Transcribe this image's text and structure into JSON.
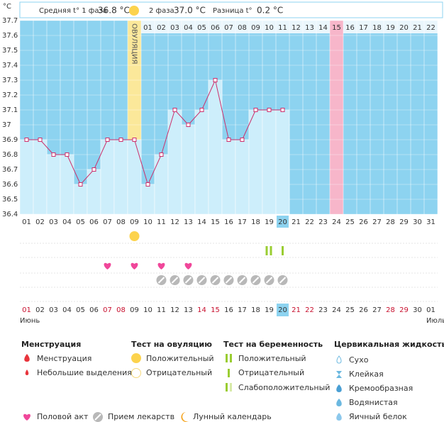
{
  "chart_data": {
    "type": "line",
    "unit": "°C",
    "header": {
      "phase1_label": "Средняя t° 1 фаза",
      "phase1_value": "36.8 °C",
      "phase2_label": "2 фаза",
      "phase2_value": "37.0 °C",
      "diff_label": "Разница t°",
      "diff_value": "0.2 °C"
    },
    "ovulation_label": "ОВУЛЯЦИЯ",
    "ovulation_day": "09",
    "highlight_day": "24",
    "today": "20",
    "categories": [
      "01",
      "02",
      "03",
      "04",
      "05",
      "06",
      "07",
      "08",
      "09",
      "10",
      "11",
      "12",
      "13",
      "14",
      "15",
      "16",
      "17",
      "18",
      "19",
      "20",
      "21",
      "22",
      "23",
      "24",
      "25",
      "26",
      "27",
      "28",
      "29",
      "30",
      "31"
    ],
    "values": [
      36.9,
      36.9,
      36.8,
      36.8,
      36.6,
      36.7,
      36.9,
      36.9,
      36.9,
      36.6,
      36.8,
      37.1,
      37.0,
      37.1,
      37.3,
      36.9,
      36.9,
      37.1,
      37.1,
      37.1,
      null,
      null,
      null,
      null,
      null,
      null,
      null,
      null,
      null,
      null,
      null
    ],
    "cycle_days": [
      "01",
      "02",
      "03",
      "04",
      "05",
      "06",
      "07",
      "08",
      "09",
      "10",
      "11",
      "12",
      "13",
      "14",
      "15",
      "16",
      "17",
      "18",
      "19",
      "20",
      "21",
      "22"
    ],
    "ylim": [
      36.4,
      37.7
    ],
    "yticks": [
      36.4,
      36.5,
      36.6,
      36.7,
      36.8,
      36.9,
      37,
      37.1,
      37.2,
      37.3,
      37.4,
      37.5,
      37.6,
      37.7
    ],
    "line_color": "#cc2f6b",
    "bar_color": "#cdeefb",
    "background_color": "#8dd3f0",
    "events": {
      "ovulation_positive": [
        "09"
      ],
      "pregnancy_positive": [
        "19"
      ],
      "pregnancy_negative": [
        "20"
      ],
      "sex": [
        "07",
        "09",
        "11",
        "13"
      ],
      "medication": [
        "11",
        "12",
        "13",
        "14",
        "15",
        "16",
        "17",
        "18",
        "19",
        "20"
      ]
    },
    "dates": [
      "01",
      "02",
      "03",
      "04",
      "05",
      "06",
      "07",
      "08",
      "09",
      "10",
      "11",
      "12",
      "13",
      "14",
      "15",
      "16",
      "17",
      "18",
      "19",
      "20",
      "21",
      "22",
      "23",
      "24",
      "25",
      "26",
      "27",
      "28",
      "29",
      "30",
      "01"
    ],
    "date_colors": [
      "#c8102e",
      "#333",
      "#333",
      "#333",
      "#333",
      "#333",
      "#c8102e",
      "#c8102e",
      "#333",
      "#333",
      "#333",
      "#333",
      "#333",
      "#c8102e",
      "#c8102e",
      "#333",
      "#333",
      "#333",
      "#333",
      "#333",
      "#c8102e",
      "#c8102e",
      "#333",
      "#333",
      "#333",
      "#333",
      "#333",
      "#c8102e",
      "#c8102e",
      "#333",
      "#333"
    ],
    "month_start": "Июнь",
    "month_end": "Июль",
    "legend": {
      "menstruation": {
        "title": "Менструация",
        "items": [
          "Менструация",
          "Небольшие выделения"
        ]
      },
      "ovulation_test": {
        "title": "Тест на овуляцию",
        "items": [
          "Положительный",
          "Отрицательный"
        ]
      },
      "pregnancy_test": {
        "title": "Тест на беременность",
        "items": [
          "Положительный",
          "Отрицательный",
          "Слабоположительный"
        ]
      },
      "cervical": {
        "title": "Цервикальная жидкость",
        "items": [
          "Сухо",
          "Клейкая",
          "Кремообразная",
          "Водянистая",
          "Яичный белок"
        ]
      },
      "other": [
        "Половой акт",
        "Прием лекарств",
        "Лунный календарь"
      ]
    }
  }
}
